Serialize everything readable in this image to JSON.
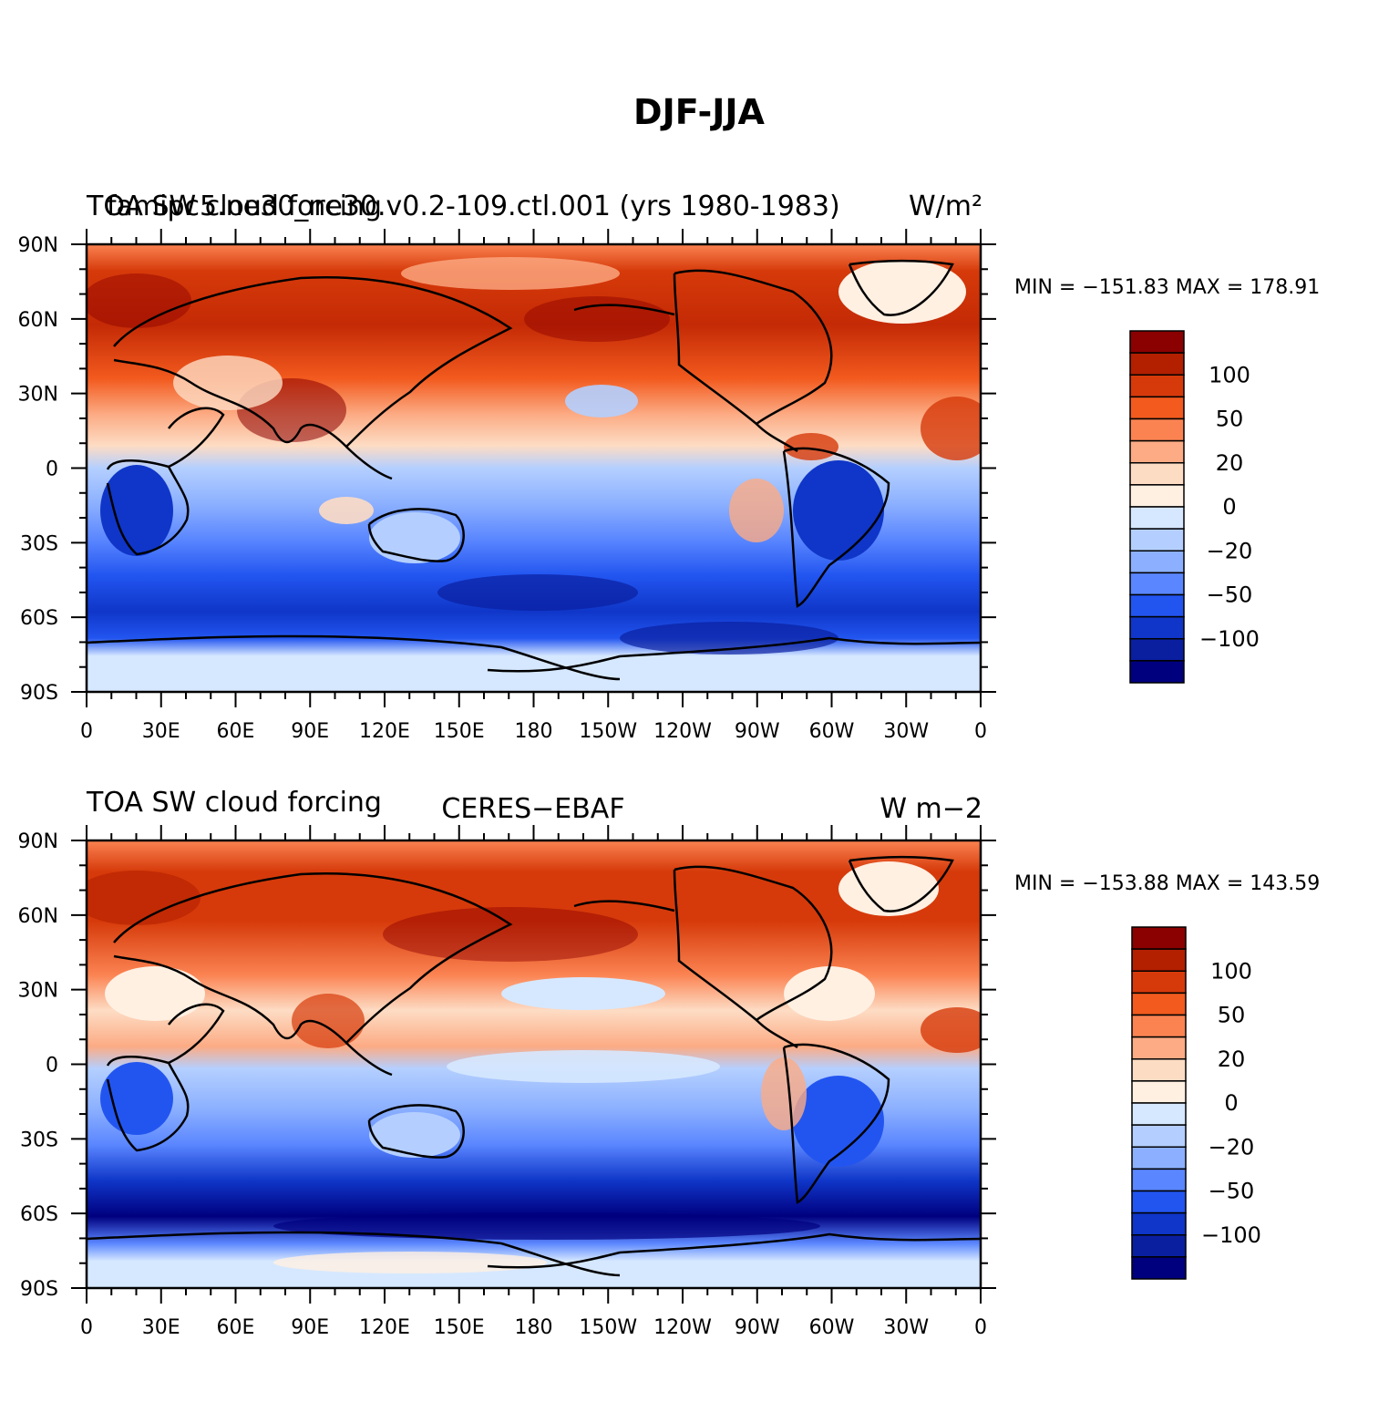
{
  "title": "DJF-JJA",
  "panels": [
    {
      "left_title": "TOA SW cloud forcing",
      "center_title": "famipc5.ne30_ne30.v0.2-109.ctl.001 (yrs 1980-1983)",
      "units": "W/m²",
      "min_max": "MIN = −151.83 MAX = 178.91"
    },
    {
      "left_title": "TOA SW cloud forcing",
      "center_title": "CERES−EBAF",
      "units": "W m−2",
      "min_max": "MIN = −153.88 MAX = 143.59"
    }
  ],
  "lat_ticks": [
    "90N",
    "60N",
    "30N",
    "0",
    "30S",
    "60S",
    "90S"
  ],
  "lon_ticks": [
    "0",
    "30E",
    "60E",
    "90E",
    "120E",
    "150E",
    "180",
    "150W",
    "120W",
    "90W",
    "60W",
    "30W",
    "0"
  ],
  "colorbar": {
    "labels": [
      "100",
      "50",
      "20",
      "0",
      "−20",
      "−50",
      "−100"
    ],
    "colors": [
      "#8b0000",
      "#b22000",
      "#d63a0a",
      "#f25a1e",
      "#fb8352",
      "#fcab84",
      "#fddcc4",
      "#fff0e2",
      "#d6e8ff",
      "#b4cfff",
      "#8cb0ff",
      "#5a86ff",
      "#2255f0",
      "#0f36c8",
      "#0a1fa0",
      "#00007f"
    ]
  }
}
